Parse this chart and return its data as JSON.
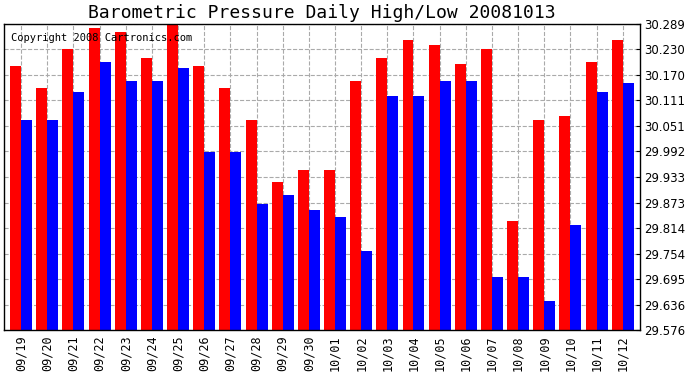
{
  "title": "Barometric Pressure Daily High/Low 20081013",
  "copyright": "Copyright 2008 Cartronics.com",
  "dates": [
    "09/19",
    "09/20",
    "09/21",
    "09/22",
    "09/23",
    "09/24",
    "09/25",
    "09/26",
    "09/27",
    "09/28",
    "09/29",
    "09/30",
    "10/01",
    "10/02",
    "10/03",
    "10/04",
    "10/05",
    "10/06",
    "10/07",
    "10/08",
    "10/09",
    "10/10",
    "10/11",
    "10/12"
  ],
  "highs": [
    30.19,
    30.14,
    30.23,
    30.28,
    30.27,
    30.21,
    30.29,
    30.19,
    30.14,
    30.065,
    29.92,
    29.95,
    29.95,
    30.155,
    30.21,
    30.25,
    30.24,
    30.195,
    30.23,
    29.83,
    30.065,
    30.075,
    30.2,
    30.25
  ],
  "lows": [
    30.065,
    30.065,
    30.13,
    30.2,
    30.155,
    30.155,
    30.185,
    29.99,
    29.99,
    29.87,
    29.89,
    29.855,
    29.84,
    29.76,
    30.12,
    30.12,
    30.155,
    30.155,
    29.7,
    29.7,
    29.645,
    29.82,
    30.13,
    30.15
  ],
  "high_color": "#FF0000",
  "low_color": "#0000FF",
  "bg_color": "#FFFFFF",
  "grid_color": "#AAAAAA",
  "ymin": 29.576,
  "ymax": 30.289,
  "yticks": [
    29.576,
    29.636,
    29.695,
    29.754,
    29.814,
    29.873,
    29.933,
    29.992,
    30.051,
    30.111,
    30.17,
    30.23,
    30.289
  ],
  "title_fontsize": 13,
  "tick_fontsize": 8.5,
  "copyright_fontsize": 7.5
}
